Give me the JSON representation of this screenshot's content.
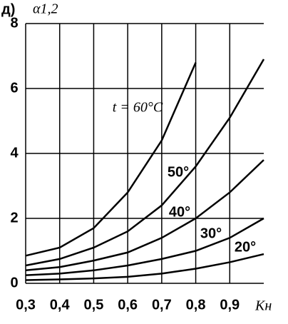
{
  "chart_data": {
    "type": "line",
    "title": "д)",
    "y_label": "α1,2",
    "x_label": "Kн",
    "x": [
      0.3,
      0.4,
      0.5,
      0.6,
      0.7,
      0.8,
      0.9,
      1.0
    ],
    "series": [
      {
        "name": "t = 60°C",
        "color": "#000000",
        "values": [
          0.85,
          1.1,
          1.7,
          2.8,
          4.4,
          6.8,
          null,
          null
        ]
      },
      {
        "name": "50°",
        "color": "#000000",
        "values": [
          0.55,
          0.75,
          1.1,
          1.6,
          2.4,
          3.6,
          5.1,
          6.9
        ]
      },
      {
        "name": "40°",
        "color": "#000000",
        "values": [
          0.4,
          0.5,
          0.7,
          0.95,
          1.4,
          2.0,
          2.8,
          3.8
        ]
      },
      {
        "name": "30°",
        "color": "#000000",
        "values": [
          0.25,
          0.3,
          0.4,
          0.55,
          0.75,
          1.0,
          1.4,
          2.0
        ]
      },
      {
        "name": "20°",
        "color": "#000000",
        "values": [
          0.1,
          0.12,
          0.15,
          0.2,
          0.3,
          0.45,
          0.65,
          0.9
        ]
      }
    ],
    "xlim": [
      0.3,
      1.0
    ],
    "xticks": [
      {
        "value": 0.3,
        "label": "0,3"
      },
      {
        "value": 0.4,
        "label": "0,4"
      },
      {
        "value": 0.5,
        "label": "0,5"
      },
      {
        "value": 0.6,
        "label": "0,6"
      },
      {
        "value": 0.7,
        "label": "0,7"
      },
      {
        "value": 0.8,
        "label": "0,8"
      },
      {
        "value": 0.9,
        "label": "0,9"
      }
    ],
    "ylim": [
      0,
      8
    ],
    "yticks": [
      0,
      2,
      4,
      6,
      8
    ],
    "grid": true
  }
}
